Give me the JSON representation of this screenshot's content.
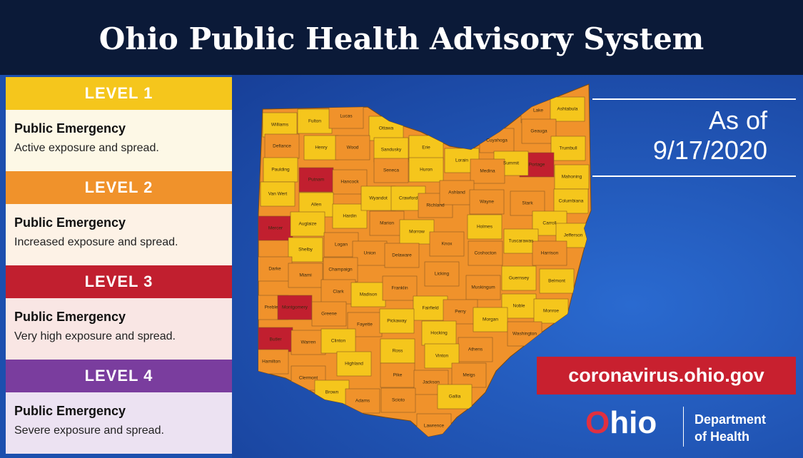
{
  "header": {
    "title": "Ohio Public Health Advisory System"
  },
  "levels": [
    {
      "label": "LEVEL 1",
      "color": "#f5c61c",
      "headline": "Public Emergency",
      "description": "Active exposure and spread."
    },
    {
      "label": "LEVEL 2",
      "color": "#f0922b",
      "headline": "Public Emergency",
      "description": "Increased exposure and spread."
    },
    {
      "label": "LEVEL 3",
      "color": "#c11f2f",
      "headline": "Public Emergency",
      "description": "Very high exposure and spread."
    },
    {
      "label": "LEVEL 4",
      "color": "#7a3d9e",
      "headline": "Public Emergency",
      "description": "Severe exposure and spread."
    }
  ],
  "map": {
    "counties": [
      {
        "name": "Williams",
        "level": 1
      },
      {
        "name": "Fulton",
        "level": 1
      },
      {
        "name": "Lucas",
        "level": 2
      },
      {
        "name": "Ottawa",
        "level": 1
      },
      {
        "name": "Defiance",
        "level": 2
      },
      {
        "name": "Henry",
        "level": 1
      },
      {
        "name": "Wood",
        "level": 2
      },
      {
        "name": "Sandusky",
        "level": 1
      },
      {
        "name": "Erie",
        "level": 1
      },
      {
        "name": "Paulding",
        "level": 1
      },
      {
        "name": "Putnam",
        "level": 3
      },
      {
        "name": "Hancock",
        "level": 2
      },
      {
        "name": "Seneca",
        "level": 2
      },
      {
        "name": "Huron",
        "level": 1
      },
      {
        "name": "Lorain",
        "level": 1
      },
      {
        "name": "Cuyahoga",
        "level": 2
      },
      {
        "name": "Lake",
        "level": 2
      },
      {
        "name": "Ashtabula",
        "level": 1
      },
      {
        "name": "Geauga",
        "level": 2
      },
      {
        "name": "Trumbull",
        "level": 1
      },
      {
        "name": "Portage",
        "level": 3
      },
      {
        "name": "Summit",
        "level": 1
      },
      {
        "name": "Medina",
        "level": 2
      },
      {
        "name": "Mahoning",
        "level": 1
      },
      {
        "name": "Van Wert",
        "level": 1
      },
      {
        "name": "Allen",
        "level": 1
      },
      {
        "name": "Hardin",
        "level": 1
      },
      {
        "name": "Wyandot",
        "level": 1
      },
      {
        "name": "Crawford",
        "level": 1
      },
      {
        "name": "Richland",
        "level": 2
      },
      {
        "name": "Ashland",
        "level": 2
      },
      {
        "name": "Wayne",
        "level": 2
      },
      {
        "name": "Stark",
        "level": 2
      },
      {
        "name": "Columbiana",
        "level": 1
      },
      {
        "name": "Mercer",
        "level": 3
      },
      {
        "name": "Auglaize",
        "level": 1
      },
      {
        "name": "Logan",
        "level": 2
      },
      {
        "name": "Union",
        "level": 2
      },
      {
        "name": "Marion",
        "level": 2
      },
      {
        "name": "Morrow",
        "level": 1
      },
      {
        "name": "Knox",
        "level": 2
      },
      {
        "name": "Holmes",
        "level": 1
      },
      {
        "name": "Carroll",
        "level": 1
      },
      {
        "name": "Tuscarawas",
        "level": 1
      },
      {
        "name": "Jefferson",
        "level": 1
      },
      {
        "name": "Harrison",
        "level": 2
      },
      {
        "name": "Coshocton",
        "level": 2
      },
      {
        "name": "Shelby",
        "level": 1
      },
      {
        "name": "Darke",
        "level": 2
      },
      {
        "name": "Miami",
        "level": 2
      },
      {
        "name": "Champaign",
        "level": 2
      },
      {
        "name": "Delaware",
        "level": 2
      },
      {
        "name": "Licking",
        "level": 2
      },
      {
        "name": "Guernsey",
        "level": 1
      },
      {
        "name": "Belmont",
        "level": 1
      },
      {
        "name": "Clark",
        "level": 2
      },
      {
        "name": "Madison",
        "level": 1
      },
      {
        "name": "Franklin",
        "level": 2
      },
      {
        "name": "Muskingum",
        "level": 2
      },
      {
        "name": "Preble",
        "level": 2
      },
      {
        "name": "Montgomery",
        "level": 3
      },
      {
        "name": "Greene",
        "level": 2
      },
      {
        "name": "Fairfield",
        "level": 1
      },
      {
        "name": "Perry",
        "level": 2
      },
      {
        "name": "Noble",
        "level": 1
      },
      {
        "name": "Monroe",
        "level": 1
      },
      {
        "name": "Fayette",
        "level": 2
      },
      {
        "name": "Pickaway",
        "level": 1
      },
      {
        "name": "Morgan",
        "level": 1
      },
      {
        "name": "Butler",
        "level": 3
      },
      {
        "name": "Warren",
        "level": 2
      },
      {
        "name": "Clinton",
        "level": 1
      },
      {
        "name": "Hocking",
        "level": 1
      },
      {
        "name": "Washington",
        "level": 2
      },
      {
        "name": "Ross",
        "level": 1
      },
      {
        "name": "Athens",
        "level": 2
      },
      {
        "name": "Vinton",
        "level": 1
      },
      {
        "name": "Hamilton",
        "level": 2
      },
      {
        "name": "Highland",
        "level": 1
      },
      {
        "name": "Clermont",
        "level": 2
      },
      {
        "name": "Pike",
        "level": 2
      },
      {
        "name": "Jackson",
        "level": 2
      },
      {
        "name": "Meigs",
        "level": 2
      },
      {
        "name": "Brown",
        "level": 1
      },
      {
        "name": "Adams",
        "level": 2
      },
      {
        "name": "Scioto",
        "level": 2
      },
      {
        "name": "Gallia",
        "level": 1
      },
      {
        "name": "Lawrence",
        "level": 2
      }
    ]
  },
  "as_of": {
    "label": "As of",
    "date": "9/17/2020"
  },
  "url": "coronavirus.ohio.gov",
  "logo": {
    "wordmark": "Ohio",
    "department": "Department",
    "of_health": "of Health"
  }
}
